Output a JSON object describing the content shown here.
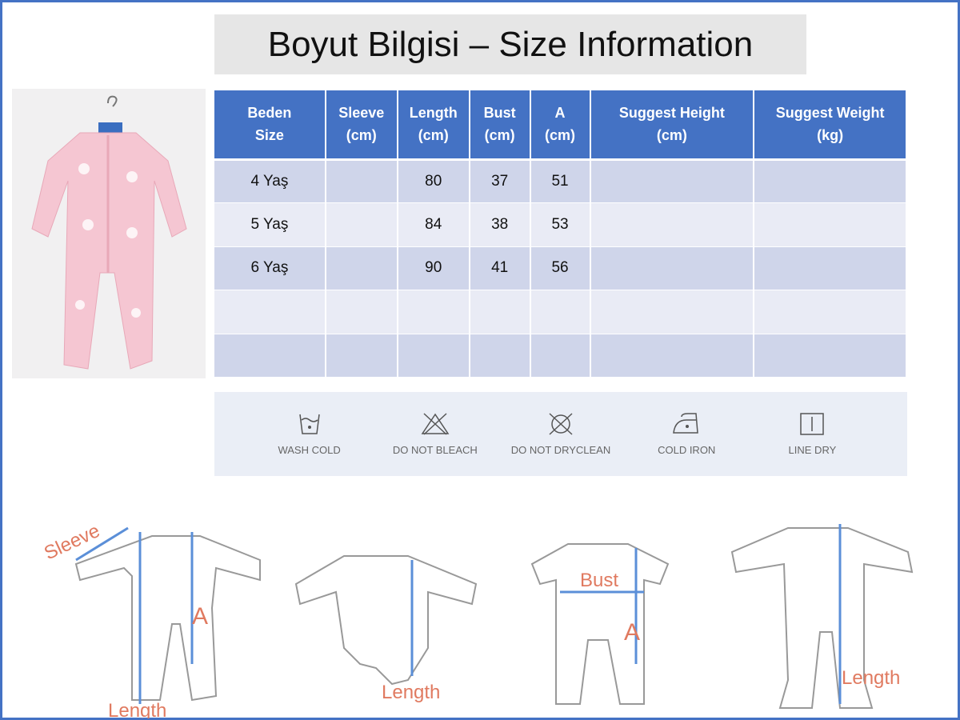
{
  "title": "Boyut Bilgisi – Size Information",
  "table": {
    "headers": [
      "Beden\nSize",
      "Sleeve\n(cm)",
      "Length\n(cm)",
      "Bust\n(cm)",
      "A\n(cm)",
      "Suggest Height\n(cm)",
      "Suggest Weight\n(kg)"
    ],
    "rows": [
      [
        "4 Yaş",
        "",
        "80",
        "37",
        "51",
        "",
        ""
      ],
      [
        "5 Yaş",
        "",
        "84",
        "38",
        "53",
        "",
        ""
      ],
      [
        "6 Yaş",
        "",
        "90",
        "41",
        "56",
        "",
        ""
      ],
      [
        "",
        "",
        "",
        "",
        "",
        "",
        ""
      ],
      [
        "",
        "",
        "",
        "",
        "",
        "",
        ""
      ]
    ]
  },
  "care": [
    {
      "icon": "wash-cold-icon",
      "label": "WASH COLD"
    },
    {
      "icon": "do-not-bleach-icon",
      "label": "DO NOT BLEACH"
    },
    {
      "icon": "do-not-dryclean-icon",
      "label": "DO NOT DRYCLEAN"
    },
    {
      "icon": "cold-iron-icon",
      "label": "COLD IRON"
    },
    {
      "icon": "line-dry-icon",
      "label": "LINE DRY"
    }
  ],
  "diagrams": {
    "sleeve": "Sleeve",
    "length": "Length",
    "a": "A",
    "bust": "Bust"
  },
  "colors": {
    "header": "#4472c4",
    "row_odd": "#cfd5ea",
    "row_even": "#e9ebf5",
    "measure": "#5b8fd8",
    "label": "#e07a60"
  }
}
